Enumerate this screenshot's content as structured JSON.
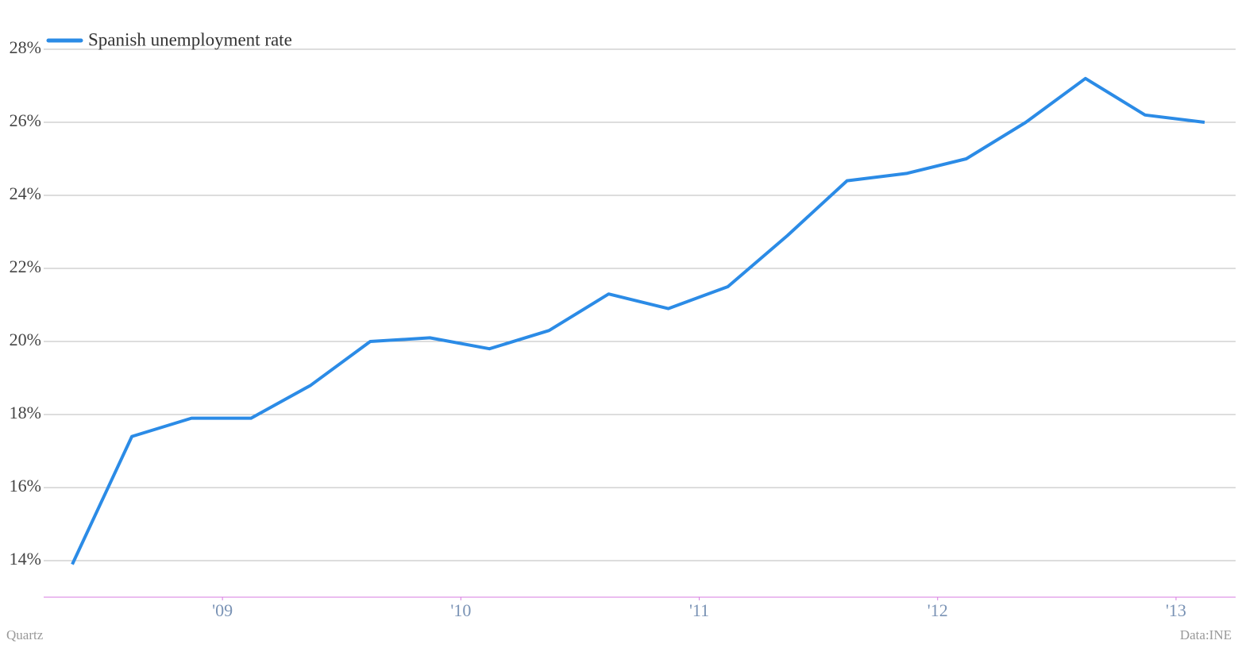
{
  "chart_data": {
    "type": "line",
    "series": [
      {
        "name": "Spanish unemployment rate",
        "color": "#2b8be6",
        "values": [
          13.9,
          17.4,
          17.9,
          17.9,
          18.8,
          20.0,
          20.1,
          19.8,
          20.3,
          21.3,
          20.9,
          21.5,
          22.9,
          24.4,
          24.6,
          25.0,
          26.0,
          27.2,
          26.2,
          26.0
        ]
      }
    ],
    "x": [
      2008.37,
      2008.62,
      2008.87,
      2009.12,
      2009.37,
      2009.62,
      2009.87,
      2010.12,
      2010.37,
      2010.62,
      2010.87,
      2011.12,
      2011.37,
      2011.62,
      2011.87,
      2012.12,
      2012.37,
      2012.62,
      2012.87,
      2013.12
    ],
    "xlim": [
      2008.25,
      2013.25
    ],
    "xticks": [
      {
        "value": 2009,
        "label": "'09"
      },
      {
        "value": 2010,
        "label": "'10"
      },
      {
        "value": 2011,
        "label": "'11"
      },
      {
        "value": 2012,
        "label": "'12"
      },
      {
        "value": 2013,
        "label": "'13"
      }
    ],
    "ylim": [
      13,
      28
    ],
    "yticks": [
      {
        "value": 14,
        "label": "14%"
      },
      {
        "value": 16,
        "label": "16%"
      },
      {
        "value": 18,
        "label": "18%"
      },
      {
        "value": 20,
        "label": "20%"
      },
      {
        "value": 22,
        "label": "22%"
      },
      {
        "value": 24,
        "label": "24%"
      },
      {
        "value": 26,
        "label": "26%"
      },
      {
        "value": 28,
        "label": "28%"
      }
    ],
    "grid": true,
    "legend": "top-left",
    "axis_color": "#d77be0",
    "credit": "Quartz",
    "source": "Data:INE"
  }
}
